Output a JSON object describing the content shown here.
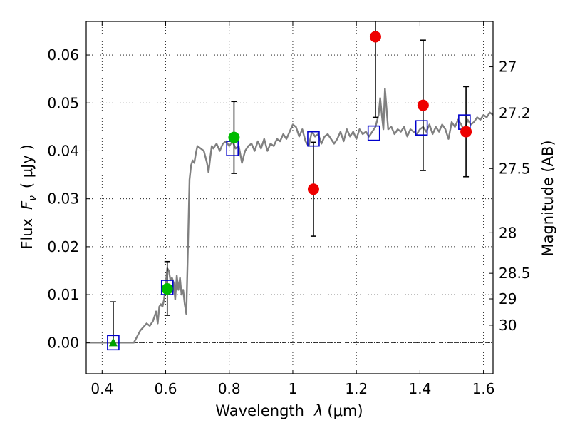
{
  "chart_data": {
    "type": "scatter",
    "xlabel_text": "Wavelength",
    "xlabel_symbol": "λ",
    "xlabel_unit": "(μm)",
    "ylabel_text": "Flux",
    "ylabel_symbol": "F",
    "ylabel_symbol_sub": "ν",
    "ylabel_unit": "( μJy )",
    "y2label": "Magnitude (AB)",
    "xlim": [
      0.35,
      1.63
    ],
    "ylim": [
      -0.0065,
      0.067
    ],
    "grid": true,
    "x_ticks": [
      0.4,
      0.6,
      0.8,
      1.0,
      1.2,
      1.4,
      1.6
    ],
    "x_tick_labels": [
      "0.4",
      "0.6",
      "0.8",
      "1",
      "1.2",
      "1.4",
      "1.6"
    ],
    "y_ticks": [
      0.0,
      0.01,
      0.02,
      0.03,
      0.04,
      0.05,
      0.06
    ],
    "y_tick_labels": [
      "0.00",
      "0.01",
      "0.02",
      "0.03",
      "0.04",
      "0.05",
      "0.06"
    ],
    "mag_ticks": [
      27,
      27.2,
      27.5,
      28,
      28.5,
      29,
      30
    ],
    "mag_tick_labels": [
      "27",
      "27.2",
      "27.5",
      "28",
      "28.5",
      "29",
      "30"
    ],
    "model_spectrum": {
      "color": "#808080",
      "x": [
        0.35,
        0.5,
        0.52,
        0.54,
        0.55,
        0.56,
        0.57,
        0.575,
        0.58,
        0.585,
        0.59,
        0.595,
        0.6,
        0.605,
        0.61,
        0.615,
        0.62,
        0.625,
        0.63,
        0.635,
        0.64,
        0.645,
        0.65,
        0.655,
        0.66,
        0.665,
        0.67,
        0.675,
        0.68,
        0.685,
        0.69,
        0.695,
        0.7,
        0.71,
        0.72,
        0.73,
        0.735,
        0.74,
        0.745,
        0.75,
        0.76,
        0.77,
        0.78,
        0.79,
        0.8,
        0.81,
        0.82,
        0.83,
        0.84,
        0.85,
        0.86,
        0.87,
        0.88,
        0.89,
        0.9,
        0.91,
        0.92,
        0.93,
        0.94,
        0.95,
        0.96,
        0.97,
        0.98,
        0.99,
        1.0,
        1.01,
        1.02,
        1.03,
        1.04,
        1.05,
        1.06,
        1.07,
        1.08,
        1.09,
        1.1,
        1.11,
        1.12,
        1.13,
        1.14,
        1.15,
        1.16,
        1.17,
        1.18,
        1.19,
        1.2,
        1.21,
        1.22,
        1.23,
        1.24,
        1.25,
        1.26,
        1.27,
        1.275,
        1.28,
        1.285,
        1.29,
        1.3,
        1.31,
        1.32,
        1.33,
        1.34,
        1.35,
        1.36,
        1.37,
        1.38,
        1.39,
        1.4,
        1.41,
        1.42,
        1.43,
        1.44,
        1.45,
        1.46,
        1.47,
        1.48,
        1.49,
        1.5,
        1.51,
        1.52,
        1.53,
        1.54,
        1.55,
        1.56,
        1.57,
        1.58,
        1.59,
        1.6,
        1.61,
        1.62,
        1.63
      ],
      "y": [
        0.0,
        0.0,
        0.0025,
        0.004,
        0.0035,
        0.0045,
        0.0065,
        0.004,
        0.0075,
        0.008,
        0.0075,
        0.009,
        0.012,
        0.0155,
        0.015,
        0.013,
        0.0135,
        0.0125,
        0.009,
        0.014,
        0.011,
        0.0135,
        0.01,
        0.011,
        0.008,
        0.006,
        0.02,
        0.034,
        0.037,
        0.038,
        0.0375,
        0.0395,
        0.041,
        0.0405,
        0.04,
        0.0375,
        0.0355,
        0.0385,
        0.041,
        0.0405,
        0.0415,
        0.04,
        0.0415,
        0.042,
        0.041,
        0.042,
        0.0405,
        0.041,
        0.0375,
        0.04,
        0.041,
        0.0415,
        0.04,
        0.042,
        0.0405,
        0.0425,
        0.04,
        0.0415,
        0.041,
        0.0425,
        0.042,
        0.0435,
        0.0425,
        0.044,
        0.0455,
        0.045,
        0.043,
        0.0445,
        0.042,
        0.041,
        0.044,
        0.043,
        0.0435,
        0.0415,
        0.043,
        0.0435,
        0.0425,
        0.0415,
        0.0425,
        0.044,
        0.042,
        0.0445,
        0.043,
        0.044,
        0.0425,
        0.0445,
        0.0435,
        0.044,
        0.043,
        0.044,
        0.045,
        0.0475,
        0.051,
        0.0475,
        0.0445,
        0.053,
        0.0445,
        0.045,
        0.0435,
        0.0445,
        0.044,
        0.045,
        0.043,
        0.0445,
        0.044,
        0.0435,
        0.0445,
        0.045,
        0.044,
        0.0455,
        0.0435,
        0.045,
        0.044,
        0.0455,
        0.0445,
        0.0425,
        0.046,
        0.045,
        0.0465,
        0.0455,
        0.044,
        0.0465,
        0.0455,
        0.046,
        0.047,
        0.0465,
        0.0475,
        0.047,
        0.048,
        0.0475
      ]
    },
    "series": [
      {
        "color": "#0000cc",
        "marker": "square-open",
        "points": [
          {
            "x": 0.435,
            "y": 0.0
          },
          {
            "x": 0.605,
            "y": 0.0115
          },
          {
            "x": 0.81,
            "y": 0.0405
          },
          {
            "x": 1.065,
            "y": 0.0425
          },
          {
            "x": 1.255,
            "y": 0.0437
          },
          {
            "x": 1.405,
            "y": 0.0448
          },
          {
            "x": 1.54,
            "y": 0.046
          }
        ]
      },
      {
        "color": "#00a000",
        "marker": "triangle",
        "points": [
          {
            "x": 0.435,
            "y": 0.0,
            "err": 0.0085
          }
        ]
      },
      {
        "color": "#00bb00",
        "marker": "circle",
        "points": [
          {
            "x": 0.605,
            "y": 0.0112,
            "err_lo": 0.0055,
            "err_hi": 0.0057
          },
          {
            "x": 0.815,
            "y": 0.0428,
            "err_lo": 0.0075,
            "err_hi": 0.0075
          }
        ]
      },
      {
        "color": "#ee0000",
        "marker": "circle",
        "points": [
          {
            "x": 1.065,
            "y": 0.032,
            "err_lo": 0.0098,
            "err_hi": 0.0098
          },
          {
            "x": 1.26,
            "y": 0.0638,
            "err_lo": 0.0168,
            "err_hi": 0.0168
          },
          {
            "x": 1.41,
            "y": 0.0495,
            "err_lo": 0.0136,
            "err_hi": 0.0136
          },
          {
            "x": 1.545,
            "y": 0.044,
            "err_lo": 0.0094,
            "err_hi": 0.0094
          }
        ]
      }
    ]
  }
}
